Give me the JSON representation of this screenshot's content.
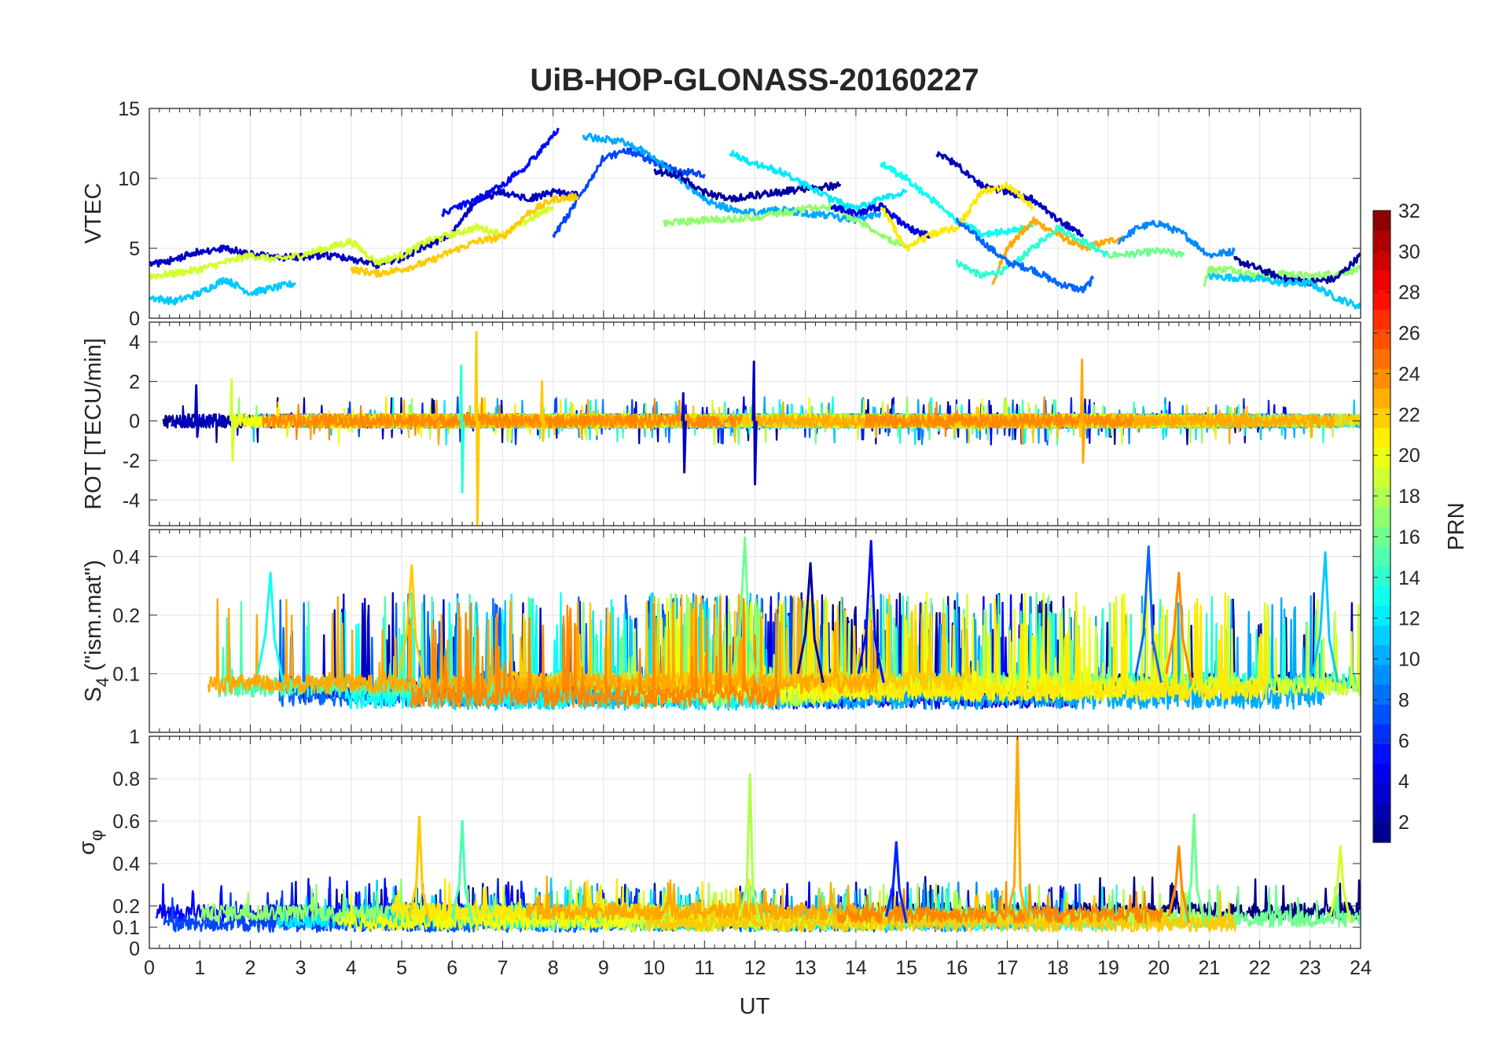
{
  "chart_data": {
    "type": "line",
    "title": "UiB-HOP-GLONASS-20160227",
    "xlabel": "UT",
    "xlim": [
      0,
      24
    ],
    "x_ticks": [
      "0",
      "1",
      "2",
      "3",
      "4",
      "5",
      "6",
      "7",
      "8",
      "9",
      "10",
      "11",
      "12",
      "13",
      "14",
      "15",
      "16",
      "17",
      "18",
      "19",
      "20",
      "21",
      "22",
      "23",
      "24"
    ],
    "grid": true,
    "colorbar": {
      "label": "PRN",
      "range": [
        1,
        32
      ],
      "colormap": "jet",
      "ticks": [
        "2",
        "4",
        "6",
        "8",
        "10",
        "12",
        "14",
        "16",
        "18",
        "20",
        "22",
        "24",
        "26",
        "28",
        "30",
        "32"
      ]
    },
    "panels": [
      {
        "id": "vtec",
        "ylabel": "VTEC",
        "ylim": [
          0,
          15
        ],
        "y_ticks": [
          "0",
          "5",
          "10",
          "15"
        ],
        "series": [
          {
            "prn": 3,
            "points": [
              [
                0,
                3.8
              ],
              [
                0.5,
                4.2
              ],
              [
                1,
                4.8
              ],
              [
                1.5,
                5.0
              ],
              [
                2,
                4.6
              ],
              [
                2.5,
                4.3
              ],
              [
                3,
                4.4
              ],
              [
                3.5,
                4.5
              ],
              [
                4,
                4.2
              ],
              [
                4.5,
                3.8
              ],
              [
                5,
                4.3
              ],
              [
                5.5,
                5.2
              ],
              [
                6,
                6.0
              ],
              [
                6.5,
                8.5
              ],
              [
                7,
                9.0
              ],
              [
                7.5,
                8.5
              ],
              [
                8,
                9.0
              ],
              [
                8.5,
                8.8
              ]
            ]
          },
          {
            "prn": 5,
            "points": [
              [
                5.8,
                7.5
              ],
              [
                6.5,
                8.5
              ],
              [
                7,
                9.5
              ],
              [
                7.5,
                11.0
              ],
              [
                8,
                13.0
              ],
              [
                8.1,
                13.6
              ]
            ]
          },
          {
            "prn": 7,
            "points": [
              [
                8,
                5.8
              ],
              [
                8.5,
                8.5
              ],
              [
                9,
                11.5
              ],
              [
                9.5,
                12.0
              ],
              [
                10,
                11.2
              ],
              [
                10.5,
                10.5
              ],
              [
                11,
                10.3
              ]
            ]
          },
          {
            "prn": 10,
            "points": [
              [
                8.6,
                13.0
              ],
              [
                9,
                12.8
              ],
              [
                9.5,
                12.5
              ],
              [
                10,
                11.5
              ],
              [
                10.5,
                10.0
              ],
              [
                11,
                8.5
              ],
              [
                11.5,
                7.8
              ],
              [
                12,
                7.5
              ],
              [
                12.5,
                7.8
              ],
              [
                13,
                7.5
              ],
              [
                13.5,
                7.3
              ],
              [
                14,
                7.0
              ],
              [
                14.5,
                7.5
              ]
            ]
          },
          {
            "prn": 2,
            "points": [
              [
                10,
                10.5
              ],
              [
                10.5,
                10.2
              ],
              [
                11,
                9.0
              ],
              [
                11.5,
                8.5
              ],
              [
                12,
                8.8
              ],
              [
                12.5,
                9.0
              ],
              [
                13,
                9.3
              ],
              [
                13.7,
                9.5
              ]
            ]
          },
          {
            "prn": 12,
            "points": [
              [
                11.5,
                11.8
              ],
              [
                12,
                11.0
              ],
              [
                12.5,
                10.5
              ],
              [
                13,
                9.5
              ],
              [
                13.5,
                8.5
              ],
              [
                14,
                7.8
              ],
              [
                14.5,
                8.5
              ],
              [
                15,
                9.0
              ]
            ]
          },
          {
            "prn": 17,
            "points": [
              [
                10.2,
                6.8
              ],
              [
                11,
                7.0
              ],
              [
                12,
                7.2
              ],
              [
                13,
                7.8
              ],
              [
                13.5,
                8.0
              ],
              [
                14,
                7.0
              ],
              [
                14.5,
                6.0
              ],
              [
                15,
                5.0
              ]
            ]
          },
          {
            "prn": 4,
            "points": [
              [
                13.5,
                8.0
              ],
              [
                14,
                7.5
              ],
              [
                14.5,
                8.0
              ],
              [
                15,
                6.5
              ],
              [
                15.5,
                5.8
              ]
            ]
          },
          {
            "prn": 13,
            "points": [
              [
                14.5,
                11.0
              ],
              [
                15,
                10.0
              ],
              [
                15.5,
                8.5
              ],
              [
                16,
                7.0
              ],
              [
                16.5,
                6.0
              ],
              [
                17,
                6.2
              ],
              [
                17.5,
                6.5
              ]
            ]
          },
          {
            "prn": 3,
            "points": [
              [
                15.6,
                11.8
              ],
              [
                16,
                11.0
              ],
              [
                16.5,
                9.5
              ],
              [
                17,
                9.0
              ],
              [
                17.5,
                8.5
              ],
              [
                18,
                7.0
              ],
              [
                18.5,
                6.0
              ]
            ]
          },
          {
            "prn": 21,
            "points": [
              [
                14.5,
                8.0
              ],
              [
                15,
                5.0
              ],
              [
                15.5,
                6.0
              ],
              [
                16,
                6.5
              ],
              [
                16.5,
                9.0
              ],
              [
                17,
                9.5
              ],
              [
                17.5,
                8.0
              ]
            ]
          },
          {
            "prn": 23,
            "points": [
              [
                16.7,
                2.5
              ],
              [
                17,
                5.0
              ],
              [
                17.5,
                7.0
              ],
              [
                18,
                6.0
              ],
              [
                18.5,
                5.0
              ],
              [
                19,
                5.5
              ],
              [
                19.3,
                5.8
              ]
            ]
          },
          {
            "prn": 14,
            "points": [
              [
                16,
                4.0
              ],
              [
                16.5,
                3.0
              ],
              [
                17,
                3.5
              ],
              [
                17.5,
                5.0
              ],
              [
                18,
                6.5
              ],
              [
                18.5,
                5.5
              ],
              [
                19,
                4.5
              ]
            ]
          },
          {
            "prn": 8,
            "points": [
              [
                16,
                7.0
              ],
              [
                16.5,
                5.5
              ],
              [
                17,
                4.0
              ],
              [
                17.5,
                3.5
              ],
              [
                18,
                2.5
              ],
              [
                18.5,
                2.0
              ],
              [
                18.7,
                2.8
              ]
            ]
          },
          {
            "prn": 16,
            "points": [
              [
                19,
                4.5
              ],
              [
                19.5,
                4.6
              ],
              [
                20,
                4.8
              ],
              [
                20.5,
                4.5
              ]
            ]
          },
          {
            "prn": 9,
            "points": [
              [
                19.2,
                5.5
              ],
              [
                19.6,
                6.5
              ],
              [
                20,
                6.8
              ],
              [
                20.5,
                6.0
              ],
              [
                21,
                4.5
              ],
              [
                21.5,
                4.8
              ]
            ]
          },
          {
            "prn": 17,
            "points": [
              [
                20.9,
                2.5
              ],
              [
                21,
                3.5
              ],
              [
                21.5,
                3.5
              ],
              [
                22,
                3.0
              ],
              [
                22.5,
                3.2
              ],
              [
                23,
                3.0
              ],
              [
                23.5,
                3.2
              ],
              [
                24,
                3.5
              ]
            ]
          },
          {
            "prn": 2,
            "points": [
              [
                21.5,
                4.2
              ],
              [
                22,
                3.5
              ],
              [
                22.5,
                2.8
              ],
              [
                23,
                2.6
              ],
              [
                23.5,
                2.8
              ],
              [
                24,
                4.5
              ]
            ]
          },
          {
            "prn": 11,
            "points": [
              [
                21,
                3.0
              ],
              [
                22,
                2.8
              ],
              [
                22.5,
                2.5
              ],
              [
                23,
                2.5
              ],
              [
                23.5,
                1.5
              ],
              [
                24,
                0.8
              ]
            ]
          },
          {
            "prn": 11,
            "points": [
              [
                0,
                1.5
              ],
              [
                0.5,
                1.2
              ],
              [
                1,
                1.8
              ],
              [
                1.5,
                2.8
              ],
              [
                2,
                1.8
              ],
              [
                2.5,
                2.2
              ],
              [
                2.9,
                2.5
              ]
            ]
          },
          {
            "prn": 19,
            "points": [
              [
                0,
                3.0
              ],
              [
                0.5,
                3.2
              ],
              [
                1,
                3.5
              ],
              [
                1.5,
                4.0
              ],
              [
                2,
                4.5
              ],
              [
                2.5,
                4.2
              ],
              [
                3,
                4.5
              ],
              [
                3.5,
                5.0
              ],
              [
                4,
                5.5
              ],
              [
                4.5,
                4.0
              ],
              [
                5,
                4.5
              ],
              [
                5.5,
                5.5
              ],
              [
                6,
                6.0
              ],
              [
                6.5,
                6.5
              ],
              [
                7,
                6.0
              ],
              [
                7.5,
                7.0
              ],
              [
                8,
                8.0
              ]
            ]
          },
          {
            "prn": 22,
            "points": [
              [
                4,
                3.5
              ],
              [
                4.5,
                3.2
              ],
              [
                5,
                3.5
              ],
              [
                5.5,
                4.0
              ],
              [
                6,
                4.8
              ],
              [
                6.5,
                5.5
              ],
              [
                7,
                5.8
              ],
              [
                7.5,
                7.5
              ],
              [
                8,
                8.5
              ],
              [
                8.5,
                8.7
              ]
            ]
          }
        ]
      },
      {
        "id": "rot",
        "ylabel": "ROT [TECU/min]",
        "ylim": [
          -5.3,
          5.0
        ],
        "y_ticks": [
          "-4",
          "-2",
          "0",
          "2",
          "4"
        ],
        "spikes": [
          {
            "prn": 22,
            "x": 6.5,
            "min": -5.3,
            "max": 4.5
          },
          {
            "prn": 3,
            "x": 12.0,
            "min": -3.2,
            "max": 3.0
          },
          {
            "prn": 3,
            "x": 10.6,
            "min": -2.6,
            "max": 1.4
          },
          {
            "prn": 14,
            "x": 6.2,
            "min": -3.6,
            "max": 2.8
          },
          {
            "prn": 23,
            "x": 18.5,
            "min": -2.1,
            "max": 3.1
          },
          {
            "prn": 19,
            "x": 1.65,
            "min": -2.0,
            "max": 2.1
          },
          {
            "prn": 3,
            "x": 0.95,
            "min": -0.8,
            "max": 1.8
          },
          {
            "prn": 22,
            "x": 7.8,
            "min": -1.0,
            "max": 2.0
          }
        ]
      },
      {
        "id": "s4",
        "ylabel": "S4 (\"ism.mat\")",
        "ylabel_main": "S",
        "ylabel_sub": "4",
        "ylabel_rest": " (\"ism.mat\")",
        "ylim": [
          0.05,
          0.55
        ],
        "y_ticks": [
          "0.1",
          "0.2",
          "0.4"
        ],
        "y_scale": "log",
        "peaks": [
          {
            "prn": 16,
            "x": 11.8,
            "y": 0.5
          },
          {
            "prn": 5,
            "x": 14.3,
            "y": 0.48
          },
          {
            "prn": 8,
            "x": 19.8,
            "y": 0.45
          },
          {
            "prn": 11,
            "x": 23.3,
            "y": 0.42
          },
          {
            "prn": 22,
            "x": 5.2,
            "y": 0.36
          },
          {
            "prn": 13,
            "x": 2.4,
            "y": 0.33
          },
          {
            "prn": 24,
            "x": 20.4,
            "y": 0.33
          },
          {
            "prn": 2,
            "x": 13.1,
            "y": 0.37
          }
        ]
      },
      {
        "id": "sigma",
        "ylabel": "σφ",
        "ylabel_main": "σ",
        "ylabel_sub": "φ",
        "ylim": [
          0,
          1
        ],
        "y_ticks": [
          "0",
          "0.1",
          "0.2",
          "0.4",
          "0.6",
          "0.8",
          "1"
        ],
        "peaks": [
          {
            "prn": 23,
            "x": 17.2,
            "y": 1.0
          },
          {
            "prn": 18,
            "x": 11.9,
            "y": 0.82
          },
          {
            "prn": 16,
            "x": 20.7,
            "y": 0.63
          },
          {
            "prn": 22,
            "x": 5.35,
            "y": 0.62
          },
          {
            "prn": 15,
            "x": 6.2,
            "y": 0.6
          },
          {
            "prn": 6,
            "x": 14.8,
            "y": 0.5
          },
          {
            "prn": 19,
            "x": 23.6,
            "y": 0.48
          },
          {
            "prn": 24,
            "x": 20.4,
            "y": 0.48
          }
        ]
      }
    ]
  }
}
